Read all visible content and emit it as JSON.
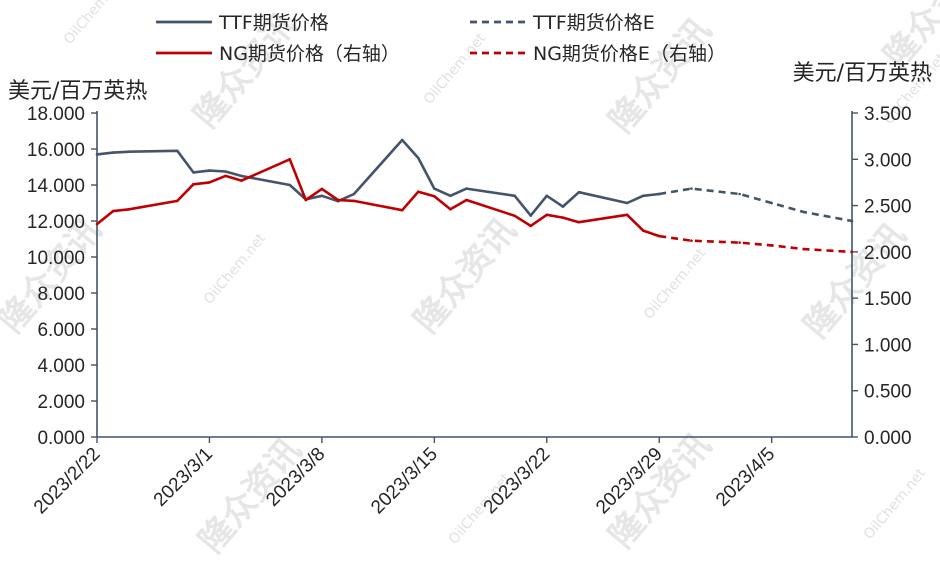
{
  "watermark": {
    "brand": "隆众资讯",
    "site": "OilChem.net"
  },
  "chart_data": {
    "type": "line",
    "left_axis_unit": "美元/百万英热",
    "right_axis_unit": "美元/百万英热",
    "ylim_left": [
      0,
      18
    ],
    "ylim_right": [
      0,
      3.5
    ],
    "y_ticks_left": [
      "0.000",
      "2.000",
      "4.000",
      "6.000",
      "8.000",
      "10.000",
      "12.000",
      "14.000",
      "16.000",
      "18.000"
    ],
    "y_ticks_right": [
      "0.000",
      "0.500",
      "1.000",
      "1.500",
      "2.000",
      "2.500",
      "3.000",
      "3.500"
    ],
    "xlim": [
      "2023-02-22",
      "2023-04-10"
    ],
    "x_ticks": [
      "2023/2/22",
      "2023/3/1",
      "2023/3/8",
      "2023/3/15",
      "2023/3/22",
      "2023/3/29",
      "2023/4/5"
    ],
    "series": [
      {
        "name": "TTF期货价格",
        "axis": "left",
        "style": "solid",
        "color": "#44546A",
        "x": [
          "2023-02-22",
          "2023-02-23",
          "2023-02-24",
          "2023-02-27",
          "2023-02-28",
          "2023-03-01",
          "2023-03-02",
          "2023-03-03",
          "2023-03-06",
          "2023-03-07",
          "2023-03-08",
          "2023-03-09",
          "2023-03-10",
          "2023-03-13",
          "2023-03-14",
          "2023-03-15",
          "2023-03-16",
          "2023-03-17",
          "2023-03-20",
          "2023-03-21",
          "2023-03-22",
          "2023-03-23",
          "2023-03-24",
          "2023-03-27",
          "2023-03-28",
          "2023-03-29"
        ],
        "values": [
          15.7,
          15.8,
          15.85,
          15.9,
          14.7,
          14.8,
          14.75,
          14.5,
          14.0,
          13.2,
          13.4,
          13.1,
          13.5,
          16.5,
          15.5,
          13.8,
          13.4,
          13.8,
          13.4,
          12.3,
          13.4,
          12.8,
          13.6,
          13.0,
          13.4,
          13.5
        ]
      },
      {
        "name": "TTF期货价格E",
        "axis": "left",
        "style": "dashed",
        "color": "#44546A",
        "x": [
          "2023-03-29",
          "2023-03-31",
          "2023-04-03",
          "2023-04-05",
          "2023-04-07",
          "2023-04-10"
        ],
        "values": [
          13.5,
          13.8,
          13.5,
          13.0,
          12.5,
          12.0
        ]
      },
      {
        "name": "NG期货价格（右轴）",
        "axis": "right",
        "style": "solid",
        "color": "#C00000",
        "x": [
          "2023-02-22",
          "2023-02-23",
          "2023-02-24",
          "2023-02-27",
          "2023-02-28",
          "2023-03-01",
          "2023-03-02",
          "2023-03-03",
          "2023-03-06",
          "2023-03-07",
          "2023-03-08",
          "2023-03-09",
          "2023-03-10",
          "2023-03-13",
          "2023-03-14",
          "2023-03-15",
          "2023-03-16",
          "2023-03-17",
          "2023-03-20",
          "2023-03-21",
          "2023-03-22",
          "2023-03-23",
          "2023-03-24",
          "2023-03-27",
          "2023-03-28",
          "2023-03-29"
        ],
        "values": [
          2.3,
          2.44,
          2.46,
          2.55,
          2.73,
          2.75,
          2.82,
          2.77,
          3.0,
          2.56,
          2.68,
          2.56,
          2.55,
          2.45,
          2.65,
          2.6,
          2.46,
          2.56,
          2.39,
          2.28,
          2.4,
          2.37,
          2.32,
          2.4,
          2.23,
          2.17
        ]
      },
      {
        "name": "NG期货价格E（右轴）",
        "axis": "right",
        "style": "dashed",
        "color": "#C00000",
        "x": [
          "2023-03-29",
          "2023-03-31",
          "2023-04-03",
          "2023-04-05",
          "2023-04-07",
          "2023-04-10"
        ],
        "values": [
          2.17,
          2.12,
          2.1,
          2.07,
          2.03,
          2.0
        ]
      }
    ],
    "legend": {
      "placement": "top",
      "columns": 2
    },
    "grid": false
  }
}
